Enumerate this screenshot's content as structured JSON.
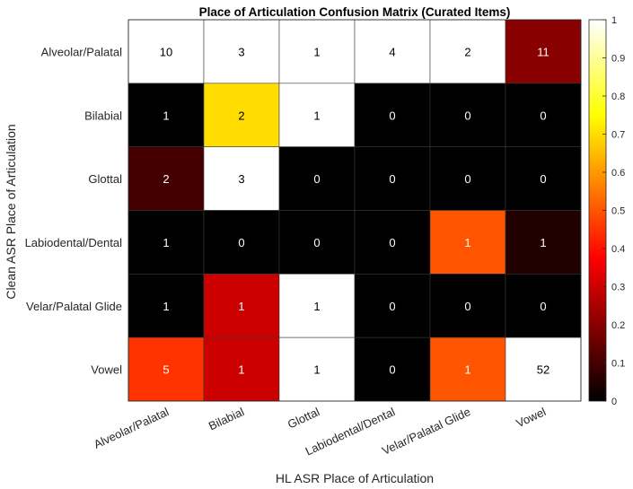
{
  "chart_data": {
    "type": "heatmap",
    "title": "Place of Articulation Confusion Matrix (Curated Items)",
    "xlabel": "HL ASR Place of Articulation",
    "ylabel": "Clean ASR Place of Articulation",
    "x_categories": [
      "Alveolar/Palatal",
      "Bilabial",
      "Glottal",
      "Labiodental/Dental",
      "Velar/Palatal Glide",
      "Vowel"
    ],
    "y_categories": [
      "Alveolar/Palatal",
      "Bilabial",
      "Glottal",
      "Labiodental/Dental",
      "Velar/Palatal Glide",
      "Vowel"
    ],
    "counts": [
      [
        10,
        3,
        1,
        4,
        2,
        11
      ],
      [
        1,
        2,
        1,
        0,
        0,
        0
      ],
      [
        2,
        3,
        0,
        0,
        0,
        0
      ],
      [
        1,
        0,
        0,
        0,
        1,
        1
      ],
      [
        1,
        1,
        1,
        0,
        0,
        0
      ],
      [
        5,
        1,
        1,
        0,
        1,
        52
      ]
    ],
    "colors": [
      [
        1.0,
        1.0,
        1.0,
        1.0,
        1.0,
        0.2
      ],
      [
        0.0,
        0.7,
        1.0,
        0.0,
        0.0,
        0.0
      ],
      [
        0.1,
        1.0,
        0.0,
        0.0,
        0.0,
        0.0
      ],
      [
        0.0,
        0.0,
        0.0,
        0.0,
        0.5,
        0.05
      ],
      [
        0.0,
        0.3,
        1.0,
        0.0,
        0.0,
        0.0
      ],
      [
        0.45,
        0.3,
        1.0,
        0.0,
        0.5,
        1.0
      ]
    ],
    "colorbar": {
      "colormap": "hot",
      "range": [
        0,
        1
      ],
      "ticks": [
        "0",
        "0.1",
        "0.2",
        "0.3",
        "0.4",
        "0.5",
        "0.6",
        "0.7",
        "0.8",
        "0.9",
        "1"
      ]
    },
    "grid": true
  }
}
